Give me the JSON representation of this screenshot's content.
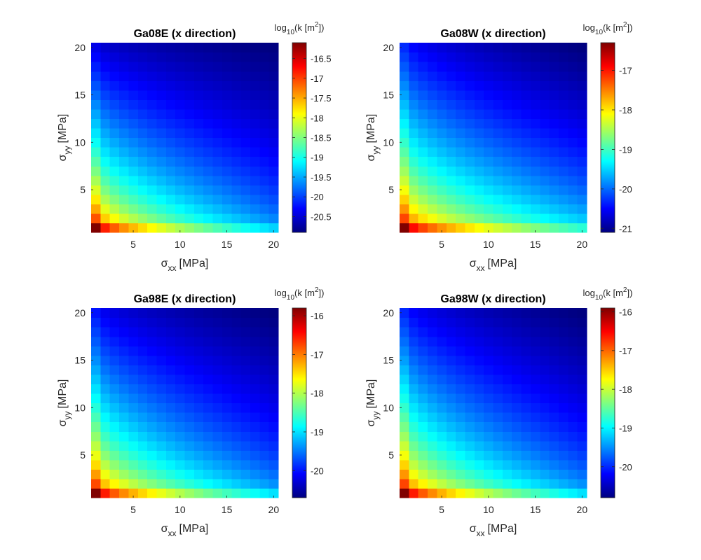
{
  "figure": {
    "background": "#ffffff"
  },
  "chart_data": [
    {
      "type": "heatmap",
      "title": "Ga08E (x direction)",
      "xlabel": {
        "symbol": "σ",
        "sub": "xx",
        "unit": "[MPa]"
      },
      "ylabel": {
        "symbol": "σ",
        "sub": "yy",
        "unit": "[MPa]"
      },
      "colorbar_label": {
        "prefix": "log",
        "sub": "10",
        "mid": "(k [m",
        "sup": "2",
        "suffix": "])"
      },
      "x_range": [
        1,
        20
      ],
      "y_range": [
        1,
        20
      ],
      "x_ticks": [
        5,
        10,
        15,
        20
      ],
      "y_ticks": [
        5,
        10,
        15,
        20
      ],
      "grid_step": 1,
      "colormap": "jet",
      "clim": [
        -20.9,
        -16.1
      ],
      "colorbar_ticks": [
        -16.5,
        -17,
        -17.5,
        -18,
        -18.5,
        -19,
        -19.5,
        -20,
        -20.5
      ],
      "z_model": {
        "z_at_origin": -16.1,
        "z_at_x20": -19.3,
        "z_at_y20": -20.4,
        "z_at_x20_y20": -20.9
      }
    },
    {
      "type": "heatmap",
      "title": "Ga08W (x direction)",
      "xlabel": {
        "symbol": "σ",
        "sub": "xx",
        "unit": "[MPa]"
      },
      "ylabel": {
        "symbol": "σ",
        "sub": "yy",
        "unit": "[MPa]"
      },
      "colorbar_label": {
        "prefix": "log",
        "sub": "10",
        "mid": "(k [m",
        "sup": "2",
        "suffix": "])"
      },
      "x_range": [
        1,
        20
      ],
      "y_range": [
        1,
        20
      ],
      "x_ticks": [
        5,
        10,
        15,
        20
      ],
      "y_ticks": [
        5,
        10,
        15,
        20
      ],
      "grid_step": 1,
      "colormap": "jet",
      "clim": [
        -21.1,
        -16.3
      ],
      "colorbar_ticks": [
        -17,
        -18,
        -19,
        -20,
        -21
      ],
      "z_model": {
        "z_at_origin": -16.3,
        "z_at_x20": -19.1,
        "z_at_y20": -20.3,
        "z_at_x20_y20": -21.1
      }
    },
    {
      "type": "heatmap",
      "title": "Ga98E (x direction)",
      "xlabel": {
        "symbol": "σ",
        "sub": "xx",
        "unit": "[MPa]"
      },
      "ylabel": {
        "symbol": "σ",
        "sub": "yy",
        "unit": "[MPa]"
      },
      "colorbar_label": {
        "prefix": "log",
        "sub": "10",
        "mid": "(k [m",
        "sup": "2",
        "suffix": "])"
      },
      "x_range": [
        1,
        20
      ],
      "y_range": [
        1,
        20
      ],
      "x_ticks": [
        5,
        10,
        15,
        20
      ],
      "y_ticks": [
        5,
        10,
        15,
        20
      ],
      "grid_step": 1,
      "colormap": "jet",
      "clim": [
        -20.7,
        -15.8
      ],
      "colorbar_ticks": [
        -16,
        -17,
        -18,
        -19,
        -20
      ],
      "z_model": {
        "z_at_origin": -15.8,
        "z_at_x20": -19.0,
        "z_at_y20": -20.0,
        "z_at_x20_y20": -20.7
      }
    },
    {
      "type": "heatmap",
      "title": "Ga98W (x direction)",
      "xlabel": {
        "symbol": "σ",
        "sub": "xx",
        "unit": "[MPa]"
      },
      "ylabel": {
        "symbol": "σ",
        "sub": "yy",
        "unit": "[MPa]"
      },
      "colorbar_label": {
        "prefix": "log",
        "sub": "10",
        "mid": "(k [m",
        "sup": "2",
        "suffix": "])"
      },
      "x_range": [
        1,
        20
      ],
      "y_range": [
        1,
        20
      ],
      "x_ticks": [
        5,
        10,
        15,
        20
      ],
      "y_ticks": [
        5,
        10,
        15,
        20
      ],
      "grid_step": 1,
      "colormap": "jet",
      "clim": [
        -20.8,
        -15.9
      ],
      "colorbar_ticks": [
        -16,
        -17,
        -18,
        -19,
        -20
      ],
      "z_model": {
        "z_at_origin": -15.9,
        "z_at_x20": -19.1,
        "z_at_y20": -20.0,
        "z_at_x20_y20": -20.8
      }
    }
  ]
}
